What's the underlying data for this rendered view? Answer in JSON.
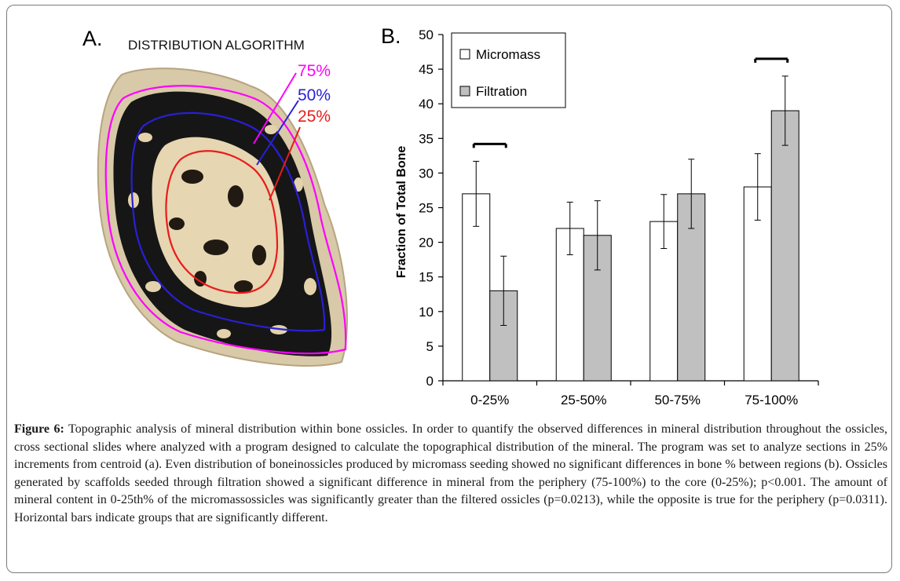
{
  "panel_a": {
    "letter": "A.",
    "title": "DISTRIBUTION ALGORITHM",
    "labels": [
      {
        "text": "75%",
        "color": "#ff00ff"
      },
      {
        "text": "50%",
        "color": "#2a1fd6"
      },
      {
        "text": "25%",
        "color": "#e81c1c"
      }
    ]
  },
  "panel_b": {
    "letter": "B."
  },
  "chart_data": {
    "type": "bar",
    "categories": [
      "0-25%",
      "25-50%",
      "50-75%",
      "75-100%"
    ],
    "series": [
      {
        "name": "Micromass",
        "values": [
          27,
          22,
          23,
          28
        ],
        "errors": [
          4.7,
          3.8,
          3.9,
          4.8
        ],
        "color": "#ffffff"
      },
      {
        "name": "Filtration",
        "values": [
          13,
          21,
          27,
          39
        ],
        "errors": [
          5,
          5,
          5,
          5
        ],
        "color": "#c0c0c0"
      }
    ],
    "ylabel": "Fraction of Total Bone",
    "xlabel": "",
    "ylim": [
      0,
      50
    ],
    "yticks": [
      0,
      5,
      10,
      15,
      20,
      25,
      30,
      35,
      40,
      45,
      50
    ],
    "legend": "top-left",
    "significance_brackets": [
      "0-25%",
      "75-100%"
    ]
  },
  "caption": {
    "label": "Figure 6:",
    "text": "Topographic analysis of mineral distribution within bone ossicles. In order to quantify the observed differences in mineral distribution throughout the ossicles, cross sectional slides where analyzed with a program designed to calculate the topographical distribution of the mineral. The program was set to analyze sections in 25% increments from centroid (a). Even distribution of boneinossicles produced by micromass seeding showed no significant differences in bone % between regions (b). Ossicles generated by scaffolds seeded through filtration showed a significant difference in mineral from the periphery (75-100%) to the core (0-25%); p<0.001. The amount of mineral content in 0-25th% of the micromassossicles was significantly greater than the filtered ossicles (p=0.0213), while the opposite is true for the periphery (p=0.0311). Horizontal bars indicate groups that are significantly different."
  }
}
